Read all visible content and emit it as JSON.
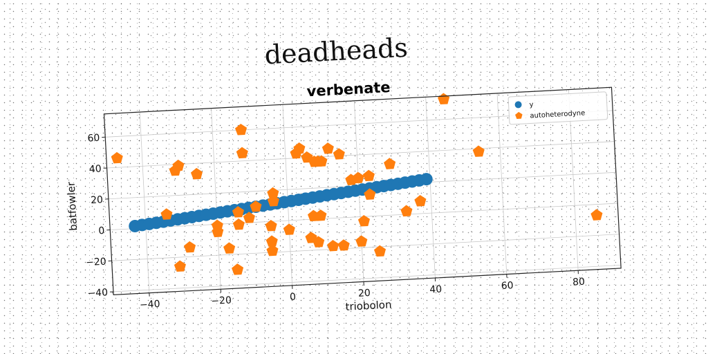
{
  "suptitle": "deadheads",
  "chart_data": {
    "type": "scatter",
    "title": "verbenate",
    "xlabel": "triobolon",
    "ylabel": "batfowler",
    "xlim": [
      -50,
      92
    ],
    "ylim": [
      -42,
      75
    ],
    "xticks": [
      -40,
      -20,
      0,
      20,
      40,
      60,
      80
    ],
    "yticks": [
      -40,
      -20,
      0,
      20,
      40,
      60
    ],
    "grid": true,
    "legend_position": "top-right",
    "series": [
      {
        "name": "y",
        "marker": "circle",
        "color": "#1f77b4",
        "points": [
          [
            -43,
            1.6
          ],
          [
            -41,
            2.1
          ],
          [
            -39,
            2.5
          ],
          [
            -37,
            3
          ],
          [
            -35,
            3.5
          ],
          [
            -33,
            4
          ],
          [
            -31,
            4.5
          ],
          [
            -29,
            5
          ],
          [
            -27,
            5.5
          ],
          [
            -25,
            6
          ],
          [
            -23,
            6.5
          ],
          [
            -21,
            7
          ],
          [
            -19,
            7.5
          ],
          [
            -17,
            8
          ],
          [
            -15,
            8.5
          ],
          [
            -13,
            9
          ],
          [
            -11,
            9.5
          ],
          [
            -9,
            10
          ],
          [
            -7,
            10.5
          ],
          [
            -5,
            11
          ],
          [
            -3,
            11.5
          ],
          [
            -1,
            12
          ],
          [
            1,
            12.5
          ],
          [
            3,
            13
          ],
          [
            5,
            13.5
          ],
          [
            7,
            14
          ],
          [
            9,
            14.5
          ],
          [
            11,
            15
          ],
          [
            13,
            15.5
          ],
          [
            15,
            16
          ],
          [
            17,
            16.5
          ],
          [
            19,
            17
          ],
          [
            21,
            17.5
          ],
          [
            23,
            18
          ],
          [
            25,
            18.5
          ],
          [
            27,
            19
          ],
          [
            29,
            19.5
          ],
          [
            31,
            20
          ],
          [
            33,
            20.5
          ],
          [
            35,
            21
          ],
          [
            37,
            21.5
          ],
          [
            39,
            22
          ]
        ]
      },
      {
        "name": "autoheterodyne",
        "marker": "pentagon",
        "color": "#ff7f0e",
        "points": [
          [
            -47,
            46
          ],
          [
            45,
            73
          ],
          [
            -30,
            39
          ],
          [
            -31,
            36
          ],
          [
            -25,
            33
          ],
          [
            -12,
            60
          ],
          [
            -12,
            45
          ],
          [
            3,
            43
          ],
          [
            4,
            46
          ],
          [
            6,
            40
          ],
          [
            8,
            37
          ],
          [
            9,
            37
          ],
          [
            12,
            45
          ],
          [
            15,
            41
          ],
          [
            10,
            37
          ],
          [
            29,
            33
          ],
          [
            54,
            38
          ],
          [
            -34,
            8
          ],
          [
            -4,
            18
          ],
          [
            -4,
            13
          ],
          [
            -9,
            10
          ],
          [
            -14,
            7
          ],
          [
            -11,
            3
          ],
          [
            -14,
            -1
          ],
          [
            -20,
            -1
          ],
          [
            -20,
            -5
          ],
          [
            -5,
            -3
          ],
          [
            0,
            -6
          ],
          [
            7,
            2
          ],
          [
            9,
            2
          ],
          [
            6,
            -12
          ],
          [
            8,
            -15
          ],
          [
            12,
            -18
          ],
          [
            15,
            -18
          ],
          [
            20,
            -16
          ],
          [
            23,
            14
          ],
          [
            21,
            -3
          ],
          [
            25,
            -23
          ],
          [
            33,
            2
          ],
          [
            37,
            8
          ],
          [
            20,
            25
          ],
          [
            23,
            26
          ],
          [
            18,
            24
          ],
          [
            -17,
            -16
          ],
          [
            -28,
            -14
          ],
          [
            -31,
            -26
          ],
          [
            -15,
            -30
          ],
          [
            -5,
            -13
          ],
          [
            -5,
            -19
          ],
          [
            86,
            -7
          ]
        ]
      }
    ]
  }
}
